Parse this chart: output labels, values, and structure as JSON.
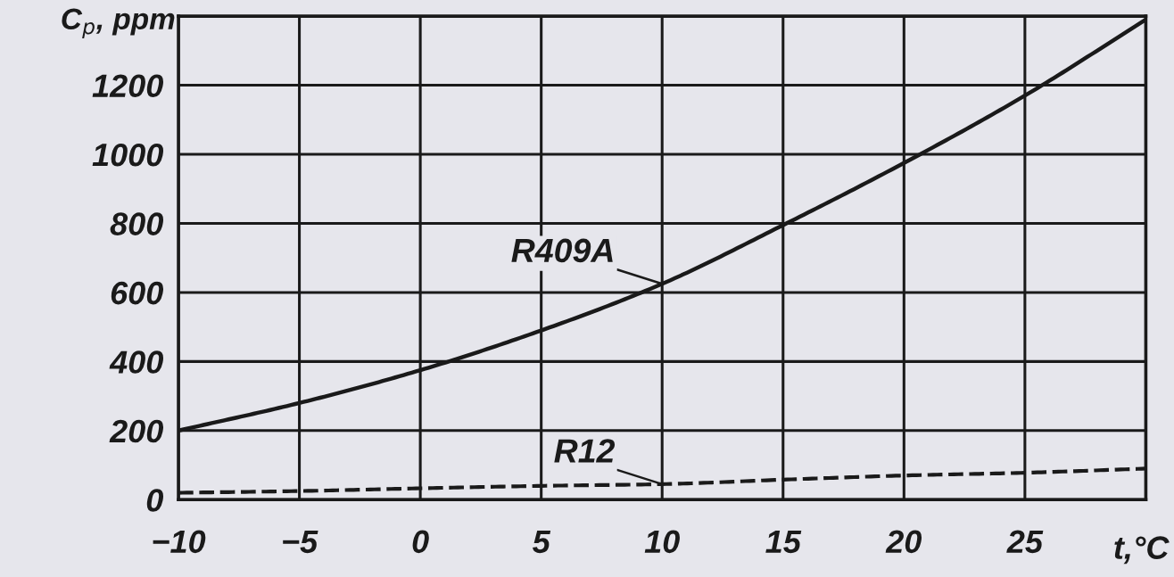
{
  "chart_data": {
    "type": "line",
    "xlabel": "t,°C",
    "ylabel": "C$_{p}$, ppm",
    "x": [
      -10,
      -5,
      0,
      5,
      10,
      15,
      20,
      25,
      30
    ],
    "series": [
      {
        "name": "R409A",
        "color": "#1a1a1a",
        "line_style": "solid",
        "values": [
          200,
          280,
          375,
          490,
          625,
          795,
          975,
          1170,
          1390
        ]
      },
      {
        "name": "R12",
        "color": "#1a1a1a",
        "line_style": "dashed",
        "values": [
          20,
          25,
          33,
          40,
          45,
          58,
          70,
          78,
          90
        ]
      }
    ],
    "xlim": [
      -10,
      30
    ],
    "ylim": [
      0,
      1400
    ],
    "xticks": [
      {
        "value": -10,
        "label": "−10"
      },
      {
        "value": -5,
        "label": "−5"
      },
      0,
      5,
      10,
      15,
      20,
      25
    ],
    "yticks": [
      0,
      200,
      400,
      600,
      800,
      1000,
      1200
    ],
    "grid": true
  }
}
